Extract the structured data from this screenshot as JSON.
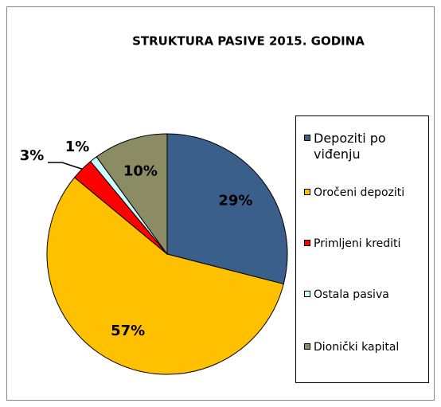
{
  "chart_data": {
    "type": "pie",
    "title": "STRUKTURA PASIVE 2015. GODINA",
    "categories": [
      "Depoziti po viđenju",
      "Oročeni depoziti",
      "Primljeni krediti",
      "Ostala pasiva",
      "Dionički kapital"
    ],
    "values": [
      29,
      57,
      3,
      1,
      10
    ],
    "value_labels": [
      "29%",
      "57%",
      "3%",
      "1%",
      "10%"
    ],
    "colors": [
      "#3a5f8a",
      "#ffc000",
      "#ff0000",
      "#ccffff",
      "#8c8c64"
    ],
    "legend": "right"
  }
}
